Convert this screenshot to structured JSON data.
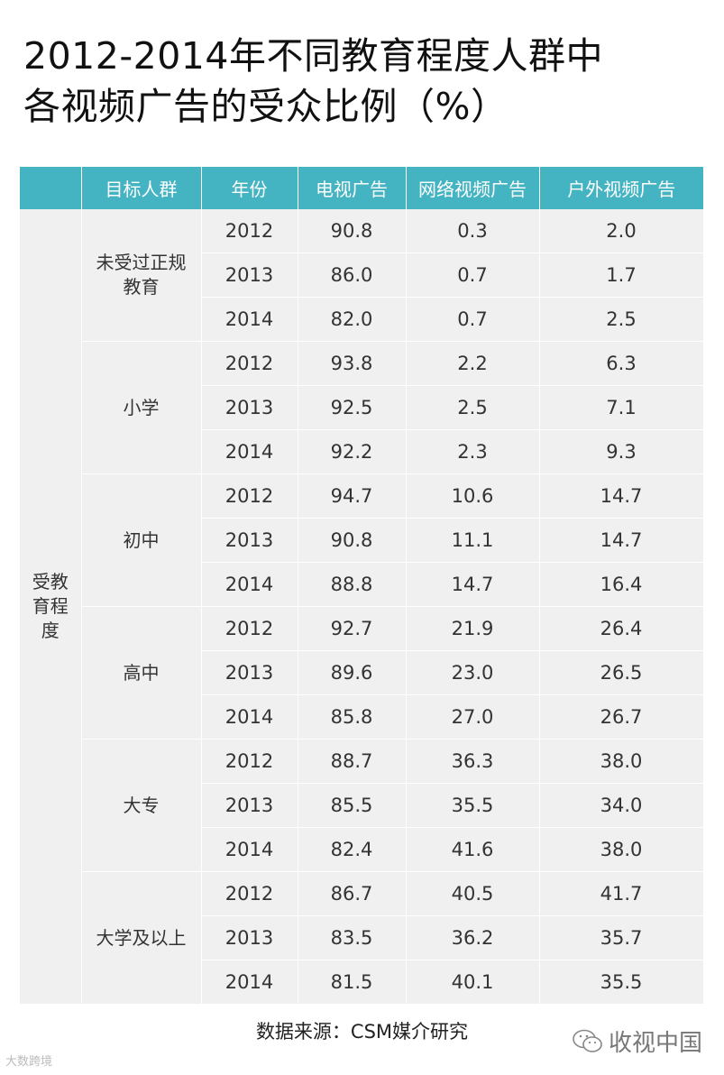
{
  "title": {
    "line1": "2012-2014年不同教育程度人群中",
    "line2": "各视频广告的受众比例（%）"
  },
  "colors": {
    "header_bg": "#44b3c2",
    "cell_bg": "#f0f0f0"
  },
  "chart_data": {
    "type": "table",
    "columns": [
      "",
      "目标人群",
      "年份",
      "电视广告",
      "网络视频广告",
      "户外视频广告"
    ],
    "dimension": "受教育程度",
    "groups": [
      {
        "name": "未受过正规教育",
        "rows": [
          {
            "year": "2012",
            "tv": "90.8",
            "online": "0.3",
            "outdoor": "2.0"
          },
          {
            "year": "2013",
            "tv": "86.0",
            "online": "0.7",
            "outdoor": "1.7"
          },
          {
            "year": "2014",
            "tv": "82.0",
            "online": "0.7",
            "outdoor": "2.5"
          }
        ]
      },
      {
        "name": "小学",
        "rows": [
          {
            "year": "2012",
            "tv": "93.8",
            "online": "2.2",
            "outdoor": "6.3"
          },
          {
            "year": "2013",
            "tv": "92.5",
            "online": "2.5",
            "outdoor": "7.1"
          },
          {
            "year": "2014",
            "tv": "92.2",
            "online": "2.3",
            "outdoor": "9.3"
          }
        ]
      },
      {
        "name": "初中",
        "rows": [
          {
            "year": "2012",
            "tv": "94.7",
            "online": "10.6",
            "outdoor": "14.7"
          },
          {
            "year": "2013",
            "tv": "90.8",
            "online": "11.1",
            "outdoor": "14.7"
          },
          {
            "year": "2014",
            "tv": "88.8",
            "online": "14.7",
            "outdoor": "16.4"
          }
        ]
      },
      {
        "name": "高中",
        "rows": [
          {
            "year": "2012",
            "tv": "92.7",
            "online": "21.9",
            "outdoor": "26.4"
          },
          {
            "year": "2013",
            "tv": "89.6",
            "online": "23.0",
            "outdoor": "26.5"
          },
          {
            "year": "2014",
            "tv": "85.8",
            "online": "27.0",
            "outdoor": "26.7"
          }
        ]
      },
      {
        "name": "大专",
        "rows": [
          {
            "year": "2012",
            "tv": "88.7",
            "online": "36.3",
            "outdoor": "38.0"
          },
          {
            "year": "2013",
            "tv": "85.5",
            "online": "35.5",
            "outdoor": "34.0"
          },
          {
            "year": "2014",
            "tv": "82.4",
            "online": "41.6",
            "outdoor": "38.0"
          }
        ]
      },
      {
        "name": "大学及以上",
        "rows": [
          {
            "year": "2012",
            "tv": "86.7",
            "online": "40.5",
            "outdoor": "41.7"
          },
          {
            "year": "2013",
            "tv": "83.5",
            "online": "36.2",
            "outdoor": "35.7"
          },
          {
            "year": "2014",
            "tv": "81.5",
            "online": "40.1",
            "outdoor": "35.5"
          }
        ]
      }
    ]
  },
  "source": "数据来源：CSM媒介研究",
  "watermark_left": "大数跨境",
  "watermark_right": "收视中国"
}
